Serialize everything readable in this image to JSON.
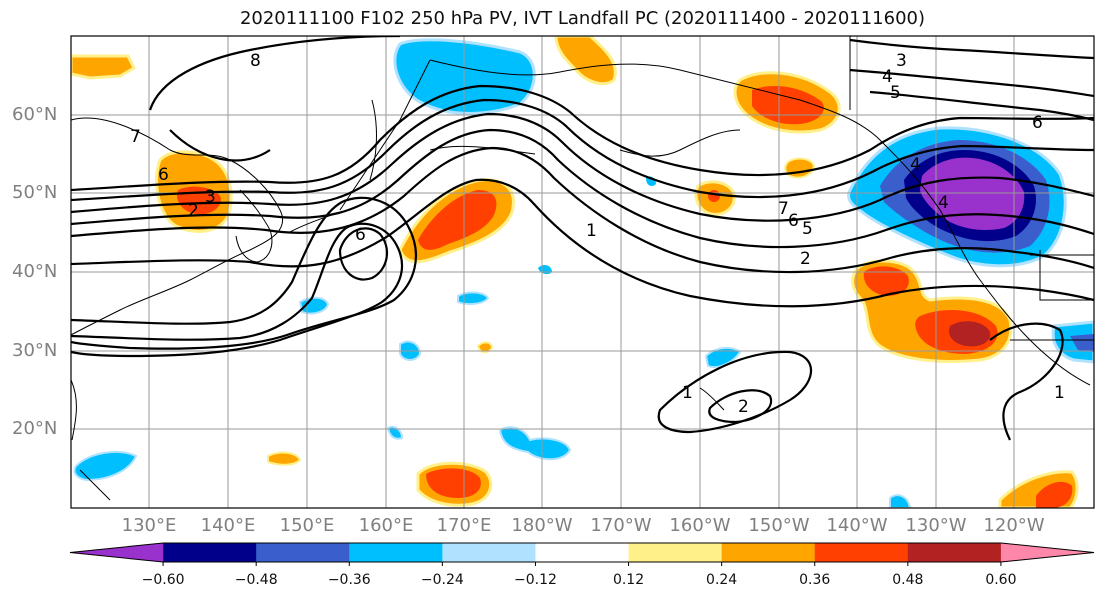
{
  "title": "2020111100 F102 250 hPa PV, IVT Landfall PC (2020111400 - 2020111600)",
  "map": {
    "lat_labels": [
      "60°N",
      "50°N",
      "40°N",
      "30°N",
      "20°N"
    ],
    "lon_labels": [
      "130°E",
      "140°E",
      "150°E",
      "160°E",
      "170°E",
      "180°W",
      "170°W",
      "160°W",
      "150°W",
      "140°W",
      "130°W",
      "120°W"
    ],
    "contour_labels": [
      "8",
      "7",
      "6",
      "3",
      "2",
      "6",
      "1",
      "3",
      "4",
      "5",
      "6",
      "4",
      "7",
      "6",
      "5",
      "2",
      "1",
      "2",
      "1",
      "4"
    ]
  },
  "colorbar": {
    "ticks": [
      "−0.60",
      "−0.48",
      "−0.36",
      "−0.24",
      "−0.12",
      "0.12",
      "0.24",
      "0.36",
      "0.48",
      "0.60"
    ],
    "colors": [
      "#9932cc",
      "#00008b",
      "#3a5fcd",
      "#00bfff",
      "#b0e2ff",
      "#ffffff",
      "#fff08a",
      "#ffa500",
      "#ff4000",
      "#b22222",
      "#ff88aa"
    ]
  }
}
